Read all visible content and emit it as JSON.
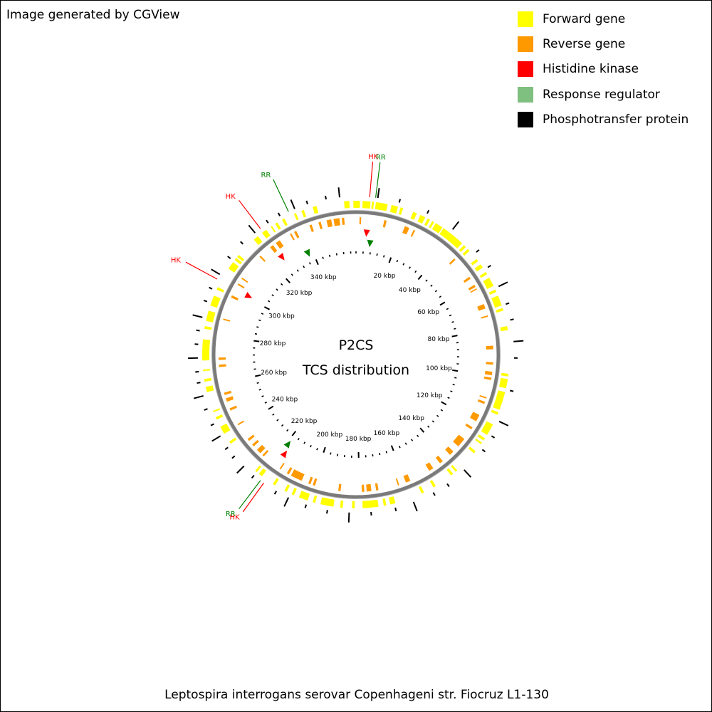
{
  "credit": "Image generated by CGView",
  "legend": [
    {
      "label": "Forward gene",
      "color": "#ffff00"
    },
    {
      "label": "Reverse gene",
      "color": "#ff9900"
    },
    {
      "label": "Histidine kinase",
      "color": "#ff0000"
    },
    {
      "label": "Response regulator",
      "color": "#7fbf7f"
    },
    {
      "label": "Phosphotransfer protein",
      "color": "#000000"
    }
  ],
  "map": {
    "title_line1": "P2CS",
    "title_line2": "TCS distribution",
    "sequence_length_kbp": 363,
    "tick_labels": [
      "20 kbp",
      "40 kbp",
      "60 kbp",
      "80 kbp",
      "100 kbp",
      "120 kbp",
      "140 kbp",
      "160 kbp",
      "180 kbp",
      "200 kbp",
      "220 kbp",
      "240 kbp",
      "260 kbp",
      "280 kbp",
      "300 kbp",
      "320 kbp",
      "340 kbp"
    ],
    "tick_values_kbp": [
      20,
      40,
      60,
      80,
      100,
      120,
      140,
      160,
      180,
      200,
      220,
      240,
      260,
      280,
      300,
      320,
      340
    ],
    "annotations": [
      {
        "label": "HK",
        "kind": "Histidine kinase",
        "position_kbp": 5.0
      },
      {
        "label": "RR",
        "kind": "Response regulator",
        "position_kbp": 7.2
      },
      {
        "label": "HK",
        "kind": "Histidine kinase",
        "position_kbp": 217.5
      },
      {
        "label": "RR",
        "kind": "Response regulator",
        "position_kbp": 219.0
      },
      {
        "label": "HK",
        "kind": "Histidine kinase",
        "position_kbp": 301.0
      },
      {
        "label": "HK",
        "kind": "Histidine kinase",
        "position_kbp": 325.5
      },
      {
        "label": "RR",
        "kind": "Response regulator",
        "position_kbp": 337.5
      }
    ],
    "forward_genes_kbp": [
      [
        358.5,
        360.5
      ],
      [
        362,
        1.5
      ],
      [
        2.5,
        5.5
      ],
      [
        6,
        6.8
      ],
      [
        7.5,
        12
      ],
      [
        13.5,
        16
      ],
      [
        17,
        18
      ],
      [
        22,
        23.5
      ],
      [
        25,
        27
      ],
      [
        28,
        29
      ],
      [
        30,
        30.8
      ],
      [
        31.5,
        34.5
      ],
      [
        35,
        44
      ],
      [
        45,
        46
      ],
      [
        47,
        48
      ],
      [
        52,
        53
      ],
      [
        54.5,
        56
      ],
      [
        58,
        59
      ],
      [
        60.5,
        64
      ],
      [
        65.5,
        66.5
      ],
      [
        68,
        72
      ],
      [
        73,
        74
      ],
      [
        80,
        81.5
      ],
      [
        98,
        99
      ],
      [
        100,
        103.5
      ],
      [
        105,
        112
      ],
      [
        113,
        114
      ],
      [
        118,
        122.5
      ],
      [
        124,
        125
      ],
      [
        126,
        126.7
      ],
      [
        130,
        131
      ],
      [
        140,
        140.8
      ],
      [
        142,
        143
      ],
      [
        150,
        151
      ],
      [
        155,
        156
      ],
      [
        166.5,
        168.5
      ],
      [
        170,
        171
      ],
      [
        173,
        179
      ],
      [
        182,
        183
      ],
      [
        186.5,
        187.5
      ],
      [
        190,
        195
      ],
      [
        197,
        198
      ],
      [
        200,
        203.5
      ],
      [
        205.5,
        206.5
      ],
      [
        208.5,
        209.5
      ],
      [
        213.5,
        214.5
      ],
      [
        219.5,
        221
      ],
      [
        222,
        222.8
      ],
      [
        236.5,
        237.5
      ],
      [
        241,
        244
      ],
      [
        247,
        248
      ],
      [
        250,
        250.6
      ],
      [
        258,
        260
      ],
      [
        262,
        263
      ],
      [
        266,
        266.6
      ],
      [
        270,
        278
      ],
      [
        282,
        283
      ],
      [
        285,
        289
      ],
      [
        291,
        295
      ],
      [
        297.5,
        298.5
      ],
      [
        306.5,
        309.5
      ],
      [
        310.5,
        311.5
      ],
      [
        312,
        313
      ],
      [
        321,
        323
      ],
      [
        325,
        327
      ],
      [
        329,
        329.6
      ],
      [
        331,
        332
      ],
      [
        334,
        335
      ],
      [
        339,
        339.8
      ],
      [
        342,
        343
      ],
      [
        346.5,
        348
      ]
    ],
    "reverse_genes_kbp": [
      [
        350.5,
        352.5
      ],
      [
        353.5,
        356
      ],
      [
        357,
        358
      ],
      [
        1.5,
        2.2
      ],
      [
        12,
        13
      ],
      [
        21,
        23
      ],
      [
        25,
        25.7
      ],
      [
        46,
        46.8
      ],
      [
        56,
        57
      ],
      [
        60,
        61
      ],
      [
        61.7,
        62.2
      ],
      [
        69,
        71
      ],
      [
        74,
        74.6
      ],
      [
        87,
        88.5
      ],
      [
        94,
        95
      ],
      [
        98,
        99.5
      ],
      [
        100.5,
        101.5
      ],
      [
        109,
        109.6
      ],
      [
        111,
        112
      ],
      [
        117,
        120
      ],
      [
        123,
        124
      ],
      [
        129,
        133
      ],
      [
        136,
        138
      ],
      [
        142,
        143.5
      ],
      [
        147,
        149
      ],
      [
        158,
        160
      ],
      [
        163,
        163.6
      ],
      [
        172,
        173
      ],
      [
        175,
        177
      ],
      [
        178,
        179
      ],
      [
        188,
        189
      ],
      [
        199,
        200
      ],
      [
        201,
        202
      ],
      [
        205,
        210
      ],
      [
        211,
        212
      ],
      [
        215,
        215.6
      ],
      [
        224,
        224.8
      ],
      [
        226,
        228
      ],
      [
        230,
        231
      ],
      [
        233,
        234
      ],
      [
        241,
        241.6
      ],
      [
        248,
        249
      ],
      [
        252,
        253.5
      ],
      [
        255,
        256
      ],
      [
        267,
        268
      ],
      [
        270,
        271
      ],
      [
        287,
        287.6
      ],
      [
        297,
        298
      ],
      [
        303,
        303.7
      ],
      [
        306,
        306.6
      ],
      [
        318,
        318.7
      ],
      [
        324,
        325.5
      ],
      [
        327,
        329
      ],
      [
        334,
        334.7
      ],
      [
        336,
        337
      ],
      [
        343,
        344
      ],
      [
        347,
        348
      ]
    ],
    "hk_markers_kbp": [
      5.0,
      217.5,
      301.0,
      325.5
    ],
    "rr_markers_kbp": [
      7.2,
      219.0,
      337.5
    ],
    "gc_skew_marks_kbp": [
      8,
      16,
      27,
      38,
      50,
      57,
      65,
      72,
      78,
      86,
      92,
      104,
      116,
      122,
      128,
      138,
      146,
      152,
      160,
      167,
      176,
      184,
      192,
      200,
      207,
      212,
      222,
      227,
      232,
      236,
      241,
      246,
      252,
      257,
      262,
      266,
      271,
      276,
      281,
      286,
      292,
      297,
      303,
      310,
      317,
      323,
      329,
      334,
      340,
      345,
      352,
      357
    ]
  },
  "organism": "Leptospira interrogans serovar Copenhageni str. Fiocruz L1-130"
}
